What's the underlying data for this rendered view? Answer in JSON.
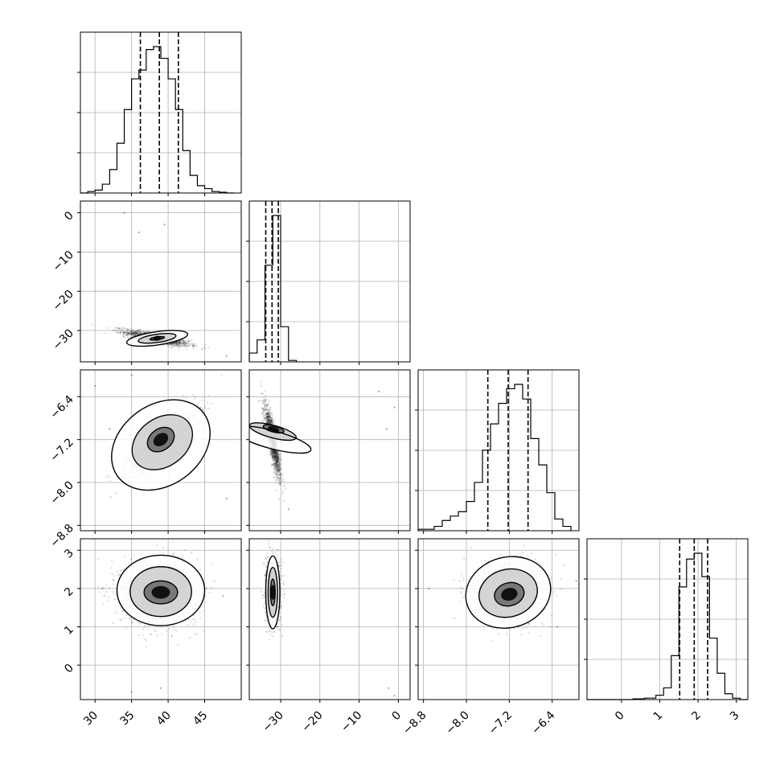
{
  "chart_data": {
    "type": "corner",
    "grid": true,
    "colors": {
      "ink": "#000000",
      "grid": "#b0b0b0",
      "background": "#ffffff"
    },
    "parameters": [
      {
        "range": [
          28,
          50
        ],
        "ticks": [
          30,
          35,
          40,
          45
        ],
        "tick_labels": [
          "30",
          "35",
          "40",
          "45"
        ],
        "quantiles": [
          36.2,
          38.8,
          41.4
        ]
      },
      {
        "range": [
          -38,
          3
        ],
        "ticks": [
          -30,
          -20,
          -10,
          0
        ],
        "tick_labels": [
          "−30",
          "−20",
          "−10",
          "0"
        ],
        "quantiles": [
          -33.8,
          -32.2,
          -30.6
        ]
      },
      {
        "range": [
          -8.9,
          -5.9
        ],
        "ticks": [
          -8.8,
          -8.0,
          -7.2,
          -6.4
        ],
        "tick_labels": [
          "−8.8",
          "−8.0",
          "−7.2",
          "−6.4"
        ],
        "quantiles": [
          -7.6,
          -7.22,
          -6.85
        ]
      },
      {
        "range": [
          -0.9,
          3.3
        ],
        "ticks": [
          0,
          1,
          2,
          3
        ],
        "tick_labels": [
          "0",
          "1",
          "2",
          "3"
        ],
        "quantiles": [
          1.52,
          1.9,
          2.25
        ]
      }
    ],
    "histograms": [
      {
        "param": 0,
        "bin_edges": [
          28.0,
          29.0,
          30.0,
          31.0,
          32.0,
          33.0,
          34.0,
          35.0,
          36.0,
          37.0,
          38.0,
          39.0,
          40.0,
          41.0,
          42.0,
          43.0,
          44.0,
          45.0,
          46.0,
          47.0,
          48.0,
          49.0
        ],
        "counts": [
          0,
          0.01,
          0.02,
          0.06,
          0.16,
          0.34,
          0.57,
          0.78,
          0.84,
          0.98,
          1.0,
          0.92,
          0.78,
          0.57,
          0.29,
          0.12,
          0.05,
          0.03,
          0.01,
          0.005,
          0
        ]
      },
      {
        "param": 1,
        "bin_edges": [
          -38.0,
          -36.0,
          -34.0,
          -32.0,
          -30.0,
          -28.0,
          -26.0
        ],
        "counts": [
          0.06,
          0.15,
          0.66,
          1.0,
          0.24,
          0.01
        ]
      },
      {
        "param": 2,
        "bin_edges": [
          -8.9,
          -8.75,
          -8.6,
          -8.45,
          -8.3,
          -8.15,
          -8.0,
          -7.85,
          -7.7,
          -7.55,
          -7.4,
          -7.25,
          -7.1,
          -6.95,
          -6.8,
          -6.65,
          -6.5,
          -6.35,
          -6.2,
          -6.05
        ],
        "counts": [
          0.01,
          0.01,
          0.03,
          0.07,
          0.1,
          0.13,
          0.2,
          0.33,
          0.55,
          0.73,
          0.87,
          0.97,
          1.0,
          0.9,
          0.63,
          0.45,
          0.26,
          0.08,
          0.03
        ]
      },
      {
        "param": 3,
        "bin_edges": [
          -0.9,
          -0.6,
          -0.3,
          0.0,
          0.3,
          0.6,
          0.9,
          1.1,
          1.3,
          1.5,
          1.7,
          1.9,
          2.1,
          2.3,
          2.5,
          2.7,
          2.9,
          3.1,
          3.3
        ],
        "counts": [
          0,
          0,
          0,
          0,
          0.005,
          0.01,
          0.03,
          0.08,
          0.3,
          0.77,
          0.96,
          1.0,
          0.84,
          0.42,
          0.18,
          0.04,
          0.01,
          0
        ]
      }
    ],
    "scatter_panels": [
      {
        "x_param": 0,
        "y_param": 1,
        "mean": [
          38.5,
          -32.0
        ],
        "sd": [
          2.2,
          1.0
        ],
        "rho": -0.8,
        "outliers": [
          [
            36.0,
            -5.0
          ],
          [
            39.5,
            -3.0
          ],
          [
            34.0,
            0.0
          ],
          [
            48.0,
            -36.5
          ]
        ],
        "contour_levels": [
          [
            38.5,
            -32.0,
            1.0,
            0.35,
            -8
          ],
          [
            38.5,
            -32.0,
            2.6,
            1.05,
            -8
          ],
          [
            38.5,
            -32.0,
            4.2,
            1.7,
            -8
          ]
        ]
      },
      {
        "x_param": 0,
        "y_param": 2,
        "mean": [
          39.0,
          -7.25
        ],
        "sd": [
          2.3,
          0.3
        ],
        "rho": 0.75,
        "outliers": [
          [
            30.0,
            -6.2
          ],
          [
            32.0,
            -7.0
          ],
          [
            35.0,
            -6.0
          ],
          [
            48.0,
            -8.3
          ]
        ],
        "contour_levels": [
          [
            39.0,
            -7.2,
            2.0,
            0.2,
            -36
          ],
          [
            39.2,
            -7.25,
            4.5,
            0.45,
            -36
          ],
          [
            39.0,
            -7.3,
            7.3,
            0.75,
            -36
          ]
        ]
      },
      {
        "x_param": 1,
        "y_param": 2,
        "mean": [
          -32.0,
          -7.25
        ],
        "sd": [
          1.0,
          0.33
        ],
        "rho": -0.85,
        "outliers": [
          [
            -5.0,
            -6.3
          ],
          [
            -1.0,
            -6.6
          ],
          [
            -3.0,
            -7.0
          ],
          [
            -28.0,
            -8.5
          ]
        ],
        "contour_levels": [
          [
            -31.8,
            -7.0,
            0.8,
            0.2,
            -75
          ],
          [
            -32.0,
            -7.05,
            1.6,
            0.45,
            -75
          ],
          [
            -32.2,
            -7.2,
            2.3,
            0.75,
            -75
          ]
        ]
      },
      {
        "x_param": 0,
        "y_param": 3,
        "mean": [
          38.8,
          1.9
        ],
        "sd": [
          2.6,
          0.4
        ],
        "rho": 0.0,
        "outliers": [
          [
            39.0,
            -0.6
          ],
          [
            31.0,
            2.0
          ],
          [
            47.5,
            1.8
          ],
          [
            35.0,
            -0.7
          ]
        ],
        "contour_levels": [
          [
            39.0,
            1.9,
            2.3,
            0.3,
            0
          ],
          [
            39.0,
            1.92,
            4.2,
            0.65,
            0
          ],
          [
            39.0,
            1.95,
            6.0,
            0.92,
            0
          ]
        ]
      },
      {
        "x_param": 1,
        "y_param": 3,
        "mean": [
          -32.0,
          1.9
        ],
        "sd": [
          0.9,
          0.4
        ],
        "rho": 0.0,
        "outliers": [
          [
            -1.0,
            -0.8
          ],
          [
            -2.5,
            -0.6
          ]
        ],
        "contour_levels": [
          [
            -32.0,
            1.9,
            0.6,
            0.35,
            0
          ],
          [
            -32.0,
            1.9,
            1.2,
            0.65,
            0
          ],
          [
            -32.0,
            1.9,
            1.8,
            0.95,
            0
          ]
        ]
      },
      {
        "x_param": 2,
        "y_param": 3,
        "mean": [
          -7.22,
          1.9
        ],
        "sd": [
          0.32,
          0.38
        ],
        "rho": 0.05,
        "outliers": [
          [
            -8.7,
            2.0
          ],
          [
            -6.3,
            1.0
          ],
          [
            -5.95,
            2.2
          ]
        ],
        "contour_levels": [
          [
            -7.2,
            1.85,
            0.28,
            0.3,
            -15
          ],
          [
            -7.22,
            1.88,
            0.55,
            0.62,
            -15
          ],
          [
            -7.22,
            1.9,
            0.8,
            0.92,
            -15
          ]
        ]
      }
    ]
  }
}
